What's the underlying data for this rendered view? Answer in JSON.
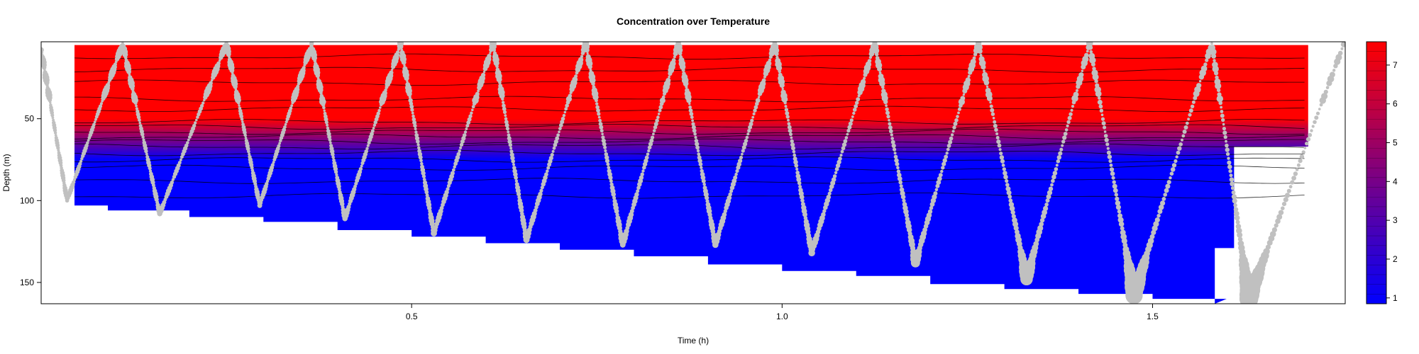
{
  "chart_data": {
    "type": "contour-scatter",
    "title": "Concentration over Temperature",
    "xlabel": "Time (h)",
    "ylabel": "Depth (m)",
    "x_ticks": [
      0.5,
      1.0,
      1.5
    ],
    "x_tick_labels": [
      "0.5",
      "1.0",
      "1.5"
    ],
    "y_ticks": [
      50,
      100,
      150
    ],
    "y_tick_labels": [
      "50",
      "100",
      "150"
    ],
    "xlim": [
      0.0,
      1.76
    ],
    "ylim": [
      163,
      3
    ],
    "y_reversed": true,
    "colorbar": {
      "ticks": [
        1,
        2,
        3,
        4,
        5,
        6,
        7
      ],
      "tick_labels": [
        "1",
        "2",
        "3",
        "4",
        "5",
        "6",
        "7"
      ],
      "range": [
        0.85,
        7.6
      ],
      "low_color": "#0000ff",
      "high_color": "#ff0000"
    },
    "field": {
      "x_start": 0.045,
      "x_end": 1.71,
      "top_depth": 5,
      "red_until_depth": 50,
      "blue_from_depth": 75,
      "bottom_depth_profile": [
        [
          0.045,
          100
        ],
        [
          0.09,
          103
        ],
        [
          0.2,
          106
        ],
        [
          0.3,
          110
        ],
        [
          0.4,
          113
        ],
        [
          0.5,
          118
        ],
        [
          0.6,
          122
        ],
        [
          0.7,
          126
        ],
        [
          0.8,
          130
        ],
        [
          0.9,
          134
        ],
        [
          1.0,
          139
        ],
        [
          1.1,
          143
        ],
        [
          1.2,
          146
        ],
        [
          1.3,
          151
        ],
        [
          1.4,
          154
        ],
        [
          1.5,
          157
        ],
        [
          1.6,
          160
        ]
      ]
    },
    "contour_depths": [
      12,
      20,
      28,
      38,
      44,
      52,
      55,
      58,
      61,
      64,
      67,
      71,
      75,
      80,
      88,
      97
    ],
    "glider_yos": {
      "surface_times": [
        0.11,
        0.25,
        0.365,
        0.485,
        0.61,
        0.735,
        0.86,
        0.99,
        1.125,
        1.265,
        1.415,
        1.58
      ],
      "bottom_times": [
        0.035,
        0.16,
        0.295,
        0.41,
        0.53,
        0.655,
        0.785,
        0.91,
        1.04,
        1.18,
        1.33,
        1.475,
        1.63
      ],
      "bottom_depths": [
        100,
        108,
        103,
        111,
        120,
        124,
        127,
        127,
        132,
        138,
        148,
        158,
        160
      ],
      "start": [
        0.0,
        8
      ],
      "end": [
        1.76,
        2
      ],
      "point_color": "#c0c0c0"
    }
  }
}
